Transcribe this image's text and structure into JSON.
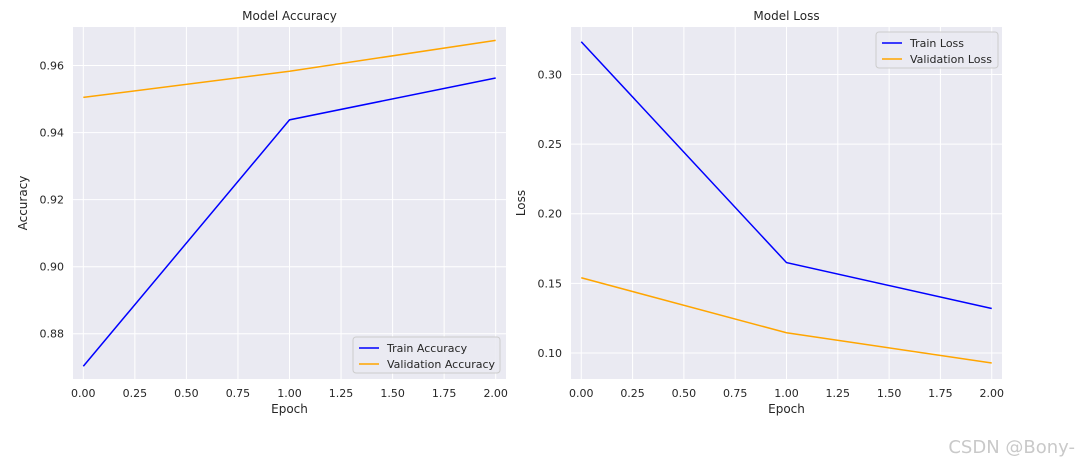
{
  "chart_data": [
    {
      "type": "line",
      "title": "Model Accuracy",
      "xlabel": "Epoch",
      "ylabel": "Accuracy",
      "x": [
        0,
        1,
        2
      ],
      "xlim": [
        -0.05,
        2.05
      ],
      "ylim": [
        0.8665,
        0.9715
      ],
      "xticks": [
        "0.00",
        "0.25",
        "0.50",
        "0.75",
        "1.00",
        "1.25",
        "1.50",
        "1.75",
        "2.00"
      ],
      "yticks": [
        "0.88",
        "0.90",
        "0.92",
        "0.94",
        "0.96"
      ],
      "grid": true,
      "legend_position": "lower-right",
      "series": [
        {
          "name": "Train Accuracy",
          "color": "#0000ff",
          "values": [
            0.8703,
            0.9438,
            0.9563
          ]
        },
        {
          "name": "Validation Accuracy",
          "color": "#ffa500",
          "values": [
            0.9505,
            0.9583,
            0.9675
          ]
        }
      ]
    },
    {
      "type": "line",
      "title": "Model Loss",
      "xlabel": "Epoch",
      "ylabel": "Loss",
      "x": [
        0,
        1,
        2
      ],
      "xlim": [
        -0.05,
        2.05
      ],
      "ylim": [
        0.0813,
        0.3341
      ],
      "xticks": [
        "0.00",
        "0.25",
        "0.50",
        "0.75",
        "1.00",
        "1.25",
        "1.50",
        "1.75",
        "2.00"
      ],
      "yticks": [
        "0.10",
        "0.15",
        "0.20",
        "0.25",
        "0.30"
      ],
      "grid": true,
      "legend_position": "upper-right",
      "series": [
        {
          "name": "Train Loss",
          "color": "#0000ff",
          "values": [
            0.3235,
            0.1649,
            0.1319
          ]
        },
        {
          "name": "Validation Loss",
          "color": "#ffa500",
          "values": [
            0.154,
            0.1145,
            0.0928
          ]
        }
      ]
    }
  ],
  "watermark": "CSDN @Bony-"
}
